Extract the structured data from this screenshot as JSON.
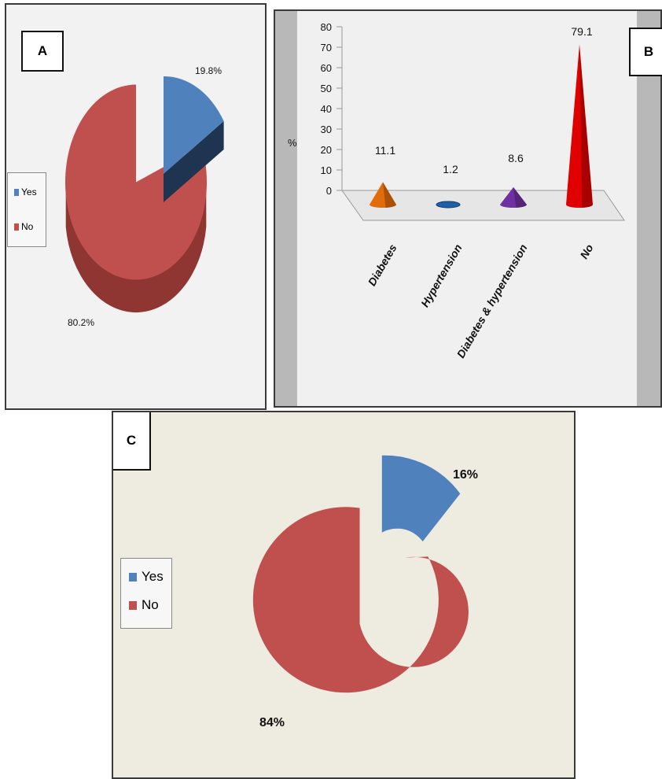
{
  "colors": {
    "yes": "#4f81bd",
    "yes_dark": "#1f3450",
    "no": "#c0504d",
    "no_dark": "#4a1918",
    "diabetes": "#e36c0a",
    "hypertension": "#1f5fa8",
    "both": "#7030a0",
    "no_cone": "#e00000"
  },
  "panels": {
    "a": {
      "label": "A"
    },
    "b": {
      "label": "B"
    },
    "c": {
      "label": "C"
    }
  },
  "chart_data": [
    {
      "panel": "A",
      "type": "pie",
      "style": "3d-exploded",
      "slices": [
        {
          "label": "Yes",
          "value": 19.8,
          "text": "19.8%",
          "color": "#4f81bd"
        },
        {
          "label": "No",
          "value": 80.2,
          "text": "80.2%",
          "color": "#c0504d"
        }
      ],
      "legend": [
        "Yes",
        "No"
      ],
      "legend_position": "left"
    },
    {
      "panel": "B",
      "type": "bar",
      "style": "3d-cone",
      "categories": [
        "Diabetes",
        "Hypertension",
        "Diabetes & hypertension",
        "No"
      ],
      "values": [
        11.1,
        1.2,
        8.6,
        79.1
      ],
      "value_labels": [
        "11.1",
        "1.2",
        "8.6",
        "79.1"
      ],
      "colors": [
        "#e36c0a",
        "#1f5fa8",
        "#7030a0",
        "#e00000"
      ],
      "ylabel": "%",
      "yticks": [
        "0",
        "10",
        "20",
        "30",
        "40",
        "50",
        "60",
        "70",
        "80"
      ],
      "ylim": [
        0,
        80
      ]
    },
    {
      "panel": "C",
      "type": "pie",
      "style": "exploded-donut",
      "slices": [
        {
          "label": "Yes",
          "value": 16,
          "text": "16%",
          "color": "#4f81bd"
        },
        {
          "label": "No",
          "value": 84,
          "text": "84%",
          "color": "#c0504d"
        }
      ],
      "legend": [
        "Yes",
        "No"
      ],
      "legend_position": "left"
    }
  ]
}
